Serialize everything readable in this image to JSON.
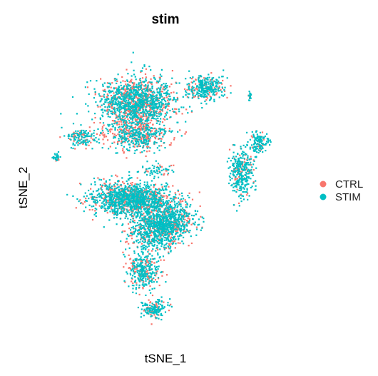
{
  "chart_data": {
    "type": "scatter",
    "title": "stim",
    "xlabel": "tSNE_1",
    "ylabel": "tSNE_2",
    "xlim": [
      -45,
      45
    ],
    "ylim": [
      -50,
      50
    ],
    "grid": false,
    "axes_visible": false,
    "legend_position": "right",
    "point_shape": "square",
    "series": [
      {
        "name": "CTRL",
        "color": "#F8766D"
      },
      {
        "name": "STIM",
        "color": "#00BFC4"
      }
    ],
    "clusters": [
      {
        "center": [
          -10,
          30
        ],
        "spread": [
          12,
          8
        ],
        "points": 1400,
        "ctrl_share": 0.4
      },
      {
        "center": [
          -10,
          19
        ],
        "spread": [
          10,
          5
        ],
        "points": 500,
        "ctrl_share": 0.5
      },
      {
        "center": [
          14,
          35
        ],
        "spread": [
          6,
          4
        ],
        "points": 320,
        "ctrl_share": 0.25
      },
      {
        "center": [
          -30,
          18
        ],
        "spread": [
          5,
          3
        ],
        "points": 140,
        "ctrl_share": 0.3
      },
      {
        "center": [
          -39,
          11
        ],
        "spread": [
          1.2,
          1.2
        ],
        "points": 30,
        "ctrl_share": 0.2
      },
      {
        "center": [
          27,
          6
        ],
        "spread": [
          4,
          7
        ],
        "points": 330,
        "ctrl_share": 0.2
      },
      {
        "center": [
          33,
          16
        ],
        "spread": [
          3,
          3
        ],
        "points": 130,
        "ctrl_share": 0.2
      },
      {
        "center": [
          -12,
          -3
        ],
        "spread": [
          13,
          5
        ],
        "points": 1300,
        "ctrl_share": 0.3
      },
      {
        "center": [
          -3,
          -13
        ],
        "spread": [
          9,
          7
        ],
        "points": 900,
        "ctrl_share": 0.3
      },
      {
        "center": [
          -8,
          -28
        ],
        "spread": [
          5,
          6
        ],
        "points": 350,
        "ctrl_share": 0.3
      },
      {
        "center": [
          -4,
          -41
        ],
        "spread": [
          4,
          3
        ],
        "points": 160,
        "ctrl_share": 0.2
      },
      {
        "center": [
          3,
          -10
        ],
        "spread": [
          8,
          5
        ],
        "points": 320,
        "ctrl_share": 0.3
      },
      {
        "center": [
          -3,
          7
        ],
        "spread": [
          5,
          2
        ],
        "points": 60,
        "ctrl_share": 0.2
      },
      {
        "center": [
          30,
          32
        ],
        "spread": [
          0.6,
          1.5
        ],
        "points": 18,
        "ctrl_share": 0.2
      }
    ]
  }
}
